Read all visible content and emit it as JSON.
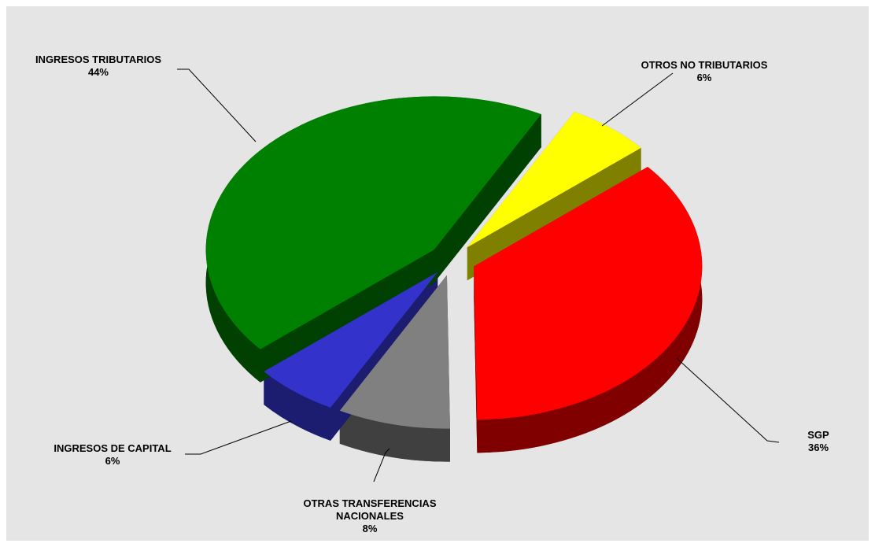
{
  "chart_data": {
    "type": "pie",
    "categories": [
      "OTROS NO TRIBUTARIOS",
      "SGP",
      "OTRAS TRANSFERENCIAS NACIONALES",
      "INGRESOS DE CAPITAL",
      "INGRESOS TRIBUTARIOS"
    ],
    "values": [
      6,
      36,
      8,
      6,
      44
    ],
    "value_labels": [
      "6%",
      "36%",
      "8%",
      "6%",
      "44%"
    ],
    "colors": [
      "#ffff00",
      "#ff0000",
      "#808080",
      "#3333cc",
      "#008000"
    ],
    "side_colors": [
      "#808000",
      "#800000",
      "#404040",
      "#1c1c70",
      "#004000"
    ]
  }
}
